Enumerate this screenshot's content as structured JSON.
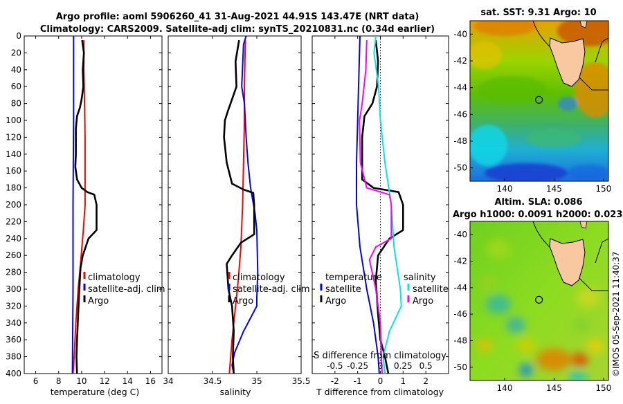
{
  "header": {
    "line1": "Argo profile: aoml 5906260_41 31-Aug-2021 44.91S 143.47E (NRT data)",
    "line2": "Climatology: CARS2009. Satellite-adj clim: synTS_20210831.nc (0.34d earlier)"
  },
  "depth_ticks": [
    "0",
    "20",
    "40",
    "60",
    "80",
    "100",
    "120",
    "140",
    "160",
    "180",
    "200",
    "220",
    "240",
    "260",
    "280",
    "300",
    "320",
    "340",
    "360",
    "380",
    "400"
  ],
  "colors": {
    "argo": "#000000",
    "climatology": "#ff0000",
    "satellite": "#0000ff",
    "satellite_salinity": "#00e5ee",
    "argo_salinity": "#ff00ff"
  },
  "chart_data": [
    {
      "type": "line",
      "name": "temperature",
      "xlabel": "temperature (deg C)",
      "xlim": [
        5,
        17
      ],
      "ylim": [
        0,
        400
      ],
      "xticks": [
        "6",
        "8",
        "10",
        "12",
        "14",
        "16"
      ],
      "legend": [
        "climatology",
        "satellite-adj. clim",
        "Argo"
      ],
      "series": [
        {
          "name": "climatology",
          "color": "red",
          "points": [
            [
              10.2,
              5
            ],
            [
              10.2,
              40
            ],
            [
              10.25,
              80
            ],
            [
              10.3,
              120
            ],
            [
              10.3,
              160
            ],
            [
              10.3,
              200
            ],
            [
              10.15,
              230
            ],
            [
              9.9,
              270
            ],
            [
              9.7,
              300
            ],
            [
              9.5,
              340
            ],
            [
              9.35,
              380
            ],
            [
              9.25,
              400
            ]
          ]
        },
        {
          "name": "satellite-adj. clim",
          "color": "blue",
          "points": [
            [
              9.3,
              0
            ],
            [
              9.3,
              100
            ],
            [
              9.25,
              200
            ],
            [
              9.25,
              300
            ],
            [
              9.2,
              400
            ]
          ]
        },
        {
          "name": "Argo",
          "color": "black",
          "points": [
            [
              10.05,
              5
            ],
            [
              10.2,
              20
            ],
            [
              10.1,
              40
            ],
            [
              10.15,
              60
            ],
            [
              10.0,
              75
            ],
            [
              9.85,
              85
            ],
            [
              9.6,
              95
            ],
            [
              9.5,
              110
            ],
            [
              9.5,
              140
            ],
            [
              9.45,
              155
            ],
            [
              9.6,
              170
            ],
            [
              10.0,
              180
            ],
            [
              10.5,
              185
            ],
            [
              11.1,
              188
            ],
            [
              11.3,
              200
            ],
            [
              11.3,
              230
            ],
            [
              10.6,
              240
            ],
            [
              10.1,
              260
            ],
            [
              9.9,
              275
            ],
            [
              9.8,
              300
            ],
            [
              9.7,
              330
            ],
            [
              9.6,
              360
            ],
            [
              9.55,
              380
            ],
            [
              9.6,
              400
            ]
          ]
        }
      ]
    },
    {
      "type": "line",
      "name": "salinity",
      "xlabel": "salinity",
      "xlim": [
        34,
        35.5
      ],
      "ylim": [
        0,
        400
      ],
      "xticks": [
        "34",
        "34.5",
        "35",
        "35.5"
      ],
      "legend": [
        "climatology",
        "satellite-adj. clim",
        "Argo"
      ],
      "series": [
        {
          "name": "climatology",
          "color": "red",
          "points": [
            [
              34.87,
              5
            ],
            [
              34.86,
              60
            ],
            [
              34.86,
              100
            ],
            [
              34.85,
              150
            ],
            [
              34.84,
              200
            ],
            [
              34.82,
              250
            ],
            [
              34.79,
              290
            ],
            [
              34.75,
              330
            ],
            [
              34.72,
              360
            ],
            [
              34.69,
              400
            ]
          ]
        },
        {
          "name": "satellite-adj. clim",
          "color": "blue",
          "points": [
            [
              34.88,
              0
            ],
            [
              34.85,
              10
            ],
            [
              34.83,
              60
            ],
            [
              34.86,
              80
            ],
            [
              34.88,
              120
            ],
            [
              34.9,
              150
            ],
            [
              34.93,
              180
            ],
            [
              34.98,
              210
            ],
            [
              35.0,
              230
            ],
            [
              35.01,
              280
            ],
            [
              35.0,
              310
            ],
            [
              35.0,
              320
            ],
            [
              34.85,
              350
            ],
            [
              34.75,
              375
            ],
            [
              34.72,
              390
            ],
            [
              34.74,
              400
            ]
          ]
        },
        {
          "name": "Argo",
          "color": "black",
          "points": [
            [
              34.8,
              5
            ],
            [
              34.76,
              30
            ],
            [
              34.77,
              60
            ],
            [
              34.67,
              90
            ],
            [
              34.64,
              100
            ],
            [
              34.63,
              120
            ],
            [
              34.66,
              150
            ],
            [
              34.72,
              175
            ],
            [
              34.85,
              182
            ],
            [
              34.96,
              186
            ],
            [
              34.97,
              200
            ],
            [
              34.97,
              235
            ],
            [
              34.82,
              245
            ],
            [
              34.72,
              260
            ],
            [
              34.66,
              270
            ],
            [
              34.68,
              300
            ],
            [
              34.72,
              320
            ],
            [
              34.74,
              350
            ],
            [
              34.73,
              380
            ],
            [
              34.74,
              400
            ]
          ]
        }
      ]
    },
    {
      "type": "line",
      "name": "difference from climatology",
      "xlabel": "T difference from climatology",
      "xlim": [
        -3,
        3
      ],
      "ylim": [
        0,
        400
      ],
      "xticks": [
        "-2",
        "-1",
        "0",
        "1",
        "2"
      ],
      "top_xlabel": "S difference from climatology",
      "top_xticks": [
        "-0.5",
        "-0.25",
        "0",
        "0.25",
        "0.5"
      ],
      "legend_left_title": "temperature",
      "legend_left": [
        "satellite",
        "Argo"
      ],
      "legend_right_title": "salinity",
      "legend_right": [
        "satellite",
        "Argo"
      ],
      "series": [
        {
          "name": "T satellite",
          "color": "blue",
          "points": [
            [
              -0.9,
              0
            ],
            [
              -0.95,
              50
            ],
            [
              -1.0,
              100
            ],
            [
              -1.05,
              150
            ],
            [
              -1.05,
              200
            ],
            [
              -0.9,
              250
            ],
            [
              -0.6,
              300
            ],
            [
              -0.3,
              340
            ],
            [
              -0.1,
              380
            ],
            [
              -0.05,
              400
            ]
          ]
        },
        {
          "name": "T Argo",
          "color": "black",
          "points": [
            [
              -0.2,
              5
            ],
            [
              -0.1,
              30
            ],
            [
              -0.15,
              60
            ],
            [
              -0.35,
              80
            ],
            [
              -0.7,
              95
            ],
            [
              -0.8,
              120
            ],
            [
              -0.8,
              170
            ],
            [
              -0.3,
              180
            ],
            [
              0.8,
              185
            ],
            [
              1.0,
              200
            ],
            [
              1.0,
              230
            ],
            [
              0.4,
              240
            ],
            [
              -0.1,
              260
            ],
            [
              -0.2,
              290
            ],
            [
              -0.1,
              330
            ],
            [
              0.0,
              360
            ],
            [
              0.2,
              380
            ],
            [
              0.35,
              400
            ]
          ]
        },
        {
          "name": "S satellite",
          "color": "cyan",
          "points": [
            [
              -0.05,
              0
            ],
            [
              -0.07,
              20
            ],
            [
              -0.02,
              60
            ],
            [
              0.0,
              100
            ],
            [
              0.05,
              150
            ],
            [
              0.12,
              200
            ],
            [
              0.15,
              250
            ],
            [
              0.22,
              300
            ],
            [
              0.23,
              320
            ],
            [
              0.1,
              350
            ],
            [
              0.03,
              380
            ],
            [
              0.05,
              400
            ]
          ]
        },
        {
          "name": "S Argo",
          "color": "magenta",
          "points": [
            [
              -0.15,
              5
            ],
            [
              -0.16,
              40
            ],
            [
              -0.2,
              80
            ],
            [
              -0.23,
              100
            ],
            [
              -0.22,
              150
            ],
            [
              -0.15,
              180
            ],
            [
              0.1,
              188
            ],
            [
              0.12,
              200
            ],
            [
              0.12,
              240
            ],
            [
              -0.05,
              250
            ],
            [
              -0.12,
              265
            ],
            [
              -0.05,
              300
            ],
            [
              0.0,
              340
            ],
            [
              0.01,
              380
            ],
            [
              0.02,
              400
            ]
          ]
        }
      ]
    },
    {
      "type": "heatmap",
      "name": "sat-sst-map",
      "title": "sat. SST: 9.31 Argo: 10",
      "xticks": [
        "140",
        "145",
        "150"
      ],
      "yticks": [
        "-40",
        "-42",
        "-44",
        "-46",
        "-48",
        "-50"
      ],
      "xlim": [
        136.5,
        150.5
      ],
      "ylim": [
        -51,
        -39
      ],
      "argo_position": [
        143.47,
        -44.91
      ]
    },
    {
      "type": "heatmap",
      "name": "altim-sla-map",
      "title": "Altim. SLA: 0.086",
      "subtitle": "Argo h1000: 0.0091 h2000: 0.023",
      "xticks": [
        "140",
        "145",
        "150"
      ],
      "yticks": [
        "-40",
        "-42",
        "-44",
        "-46",
        "-48",
        "-50"
      ],
      "xlim": [
        136.5,
        150.5
      ],
      "ylim": [
        -51,
        -39
      ],
      "argo_position": [
        143.47,
        -44.91
      ]
    }
  ],
  "watermark": "©IMOS 05-Sep-2021 11:40:37"
}
